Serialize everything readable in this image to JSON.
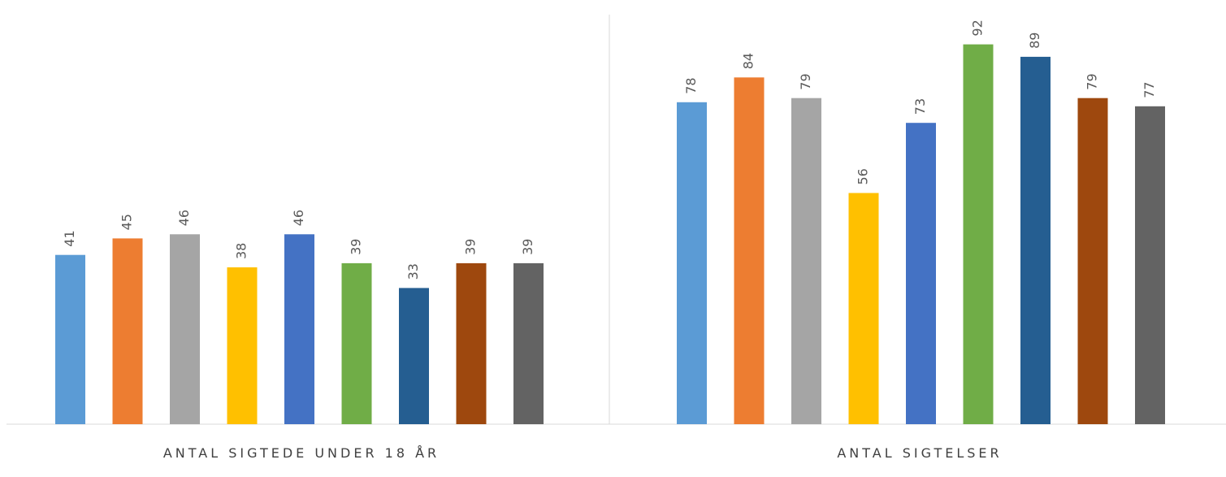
{
  "chart_data": {
    "type": "bar",
    "ylim": [
      0,
      100
    ],
    "grid": false,
    "colors": [
      "#5B9BD5",
      "#ED7D31",
      "#A5A5A5",
      "#FFC000",
      "#4472C4",
      "#70AD47",
      "#255E91",
      "#9E480E",
      "#636363"
    ],
    "groups": [
      {
        "label": "ANTAL SIGTEDE UNDER 18 ÅR",
        "values": [
          41,
          45,
          46,
          38,
          46,
          39,
          33,
          39,
          39
        ]
      },
      {
        "label": "ANTAL SIGTELSER",
        "values": [
          78,
          84,
          79,
          56,
          73,
          92,
          89,
          79,
          77
        ]
      }
    ]
  }
}
